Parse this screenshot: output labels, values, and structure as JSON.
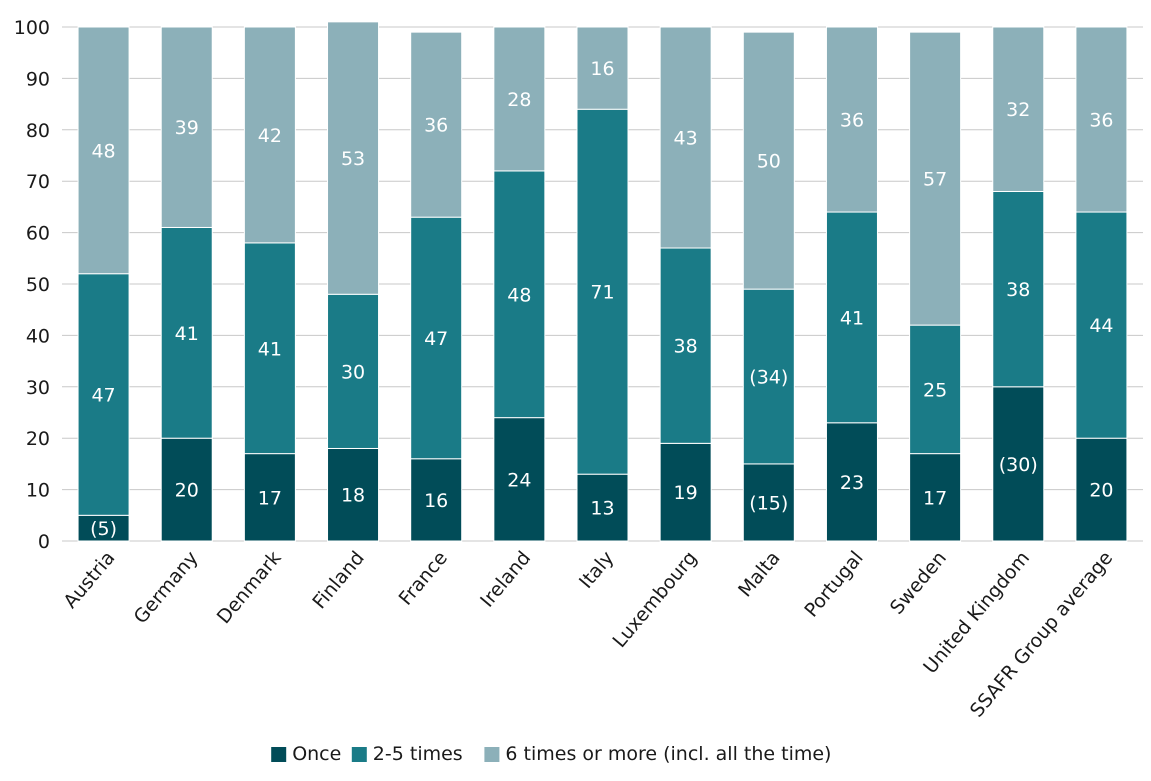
{
  "chart_data": {
    "type": "bar",
    "stacked": true,
    "title": "",
    "xlabel": "",
    "ylabel": "",
    "ylim": [
      0,
      100
    ],
    "yticks": [
      0,
      10,
      20,
      30,
      40,
      50,
      60,
      70,
      80,
      90,
      100
    ],
    "grid": true,
    "legend_position": "bottom",
    "categories": [
      "Austria",
      "Germany",
      "Denmark",
      "Finland",
      "France",
      "Ireland",
      "Italy",
      "Luxembourg",
      "Malta",
      "Portugal",
      "Sweden",
      "United Kingdom",
      "SSAFR Group average"
    ],
    "series": [
      {
        "name": "Once",
        "color": "#014c58",
        "values": [
          5,
          20,
          17,
          18,
          16,
          24,
          13,
          19,
          15,
          23,
          17,
          30,
          20
        ],
        "labels": [
          "(5)",
          "20",
          "17",
          "18",
          "16",
          "24",
          "13",
          "19",
          "(15)",
          "23",
          "17",
          "(30)",
          "20"
        ]
      },
      {
        "name": "2-5 times",
        "color": "#1a7b87",
        "values": [
          47,
          41,
          41,
          30,
          47,
          48,
          71,
          38,
          34,
          41,
          25,
          38,
          44
        ],
        "labels": [
          "47",
          "41",
          "41",
          "30",
          "47",
          "48",
          "71",
          "38",
          "(34)",
          "41",
          "25",
          "38",
          "44"
        ]
      },
      {
        "name": "6 times or more (incl. all the time)",
        "color": "#8cb0b9",
        "values": [
          48,
          39,
          42,
          53,
          36,
          28,
          16,
          43,
          50,
          36,
          57,
          32,
          36
        ],
        "labels": [
          "48",
          "39",
          "42",
          "53",
          "36",
          "28",
          "16",
          "43",
          "50",
          "36",
          "57",
          "32",
          "36"
        ]
      }
    ]
  }
}
